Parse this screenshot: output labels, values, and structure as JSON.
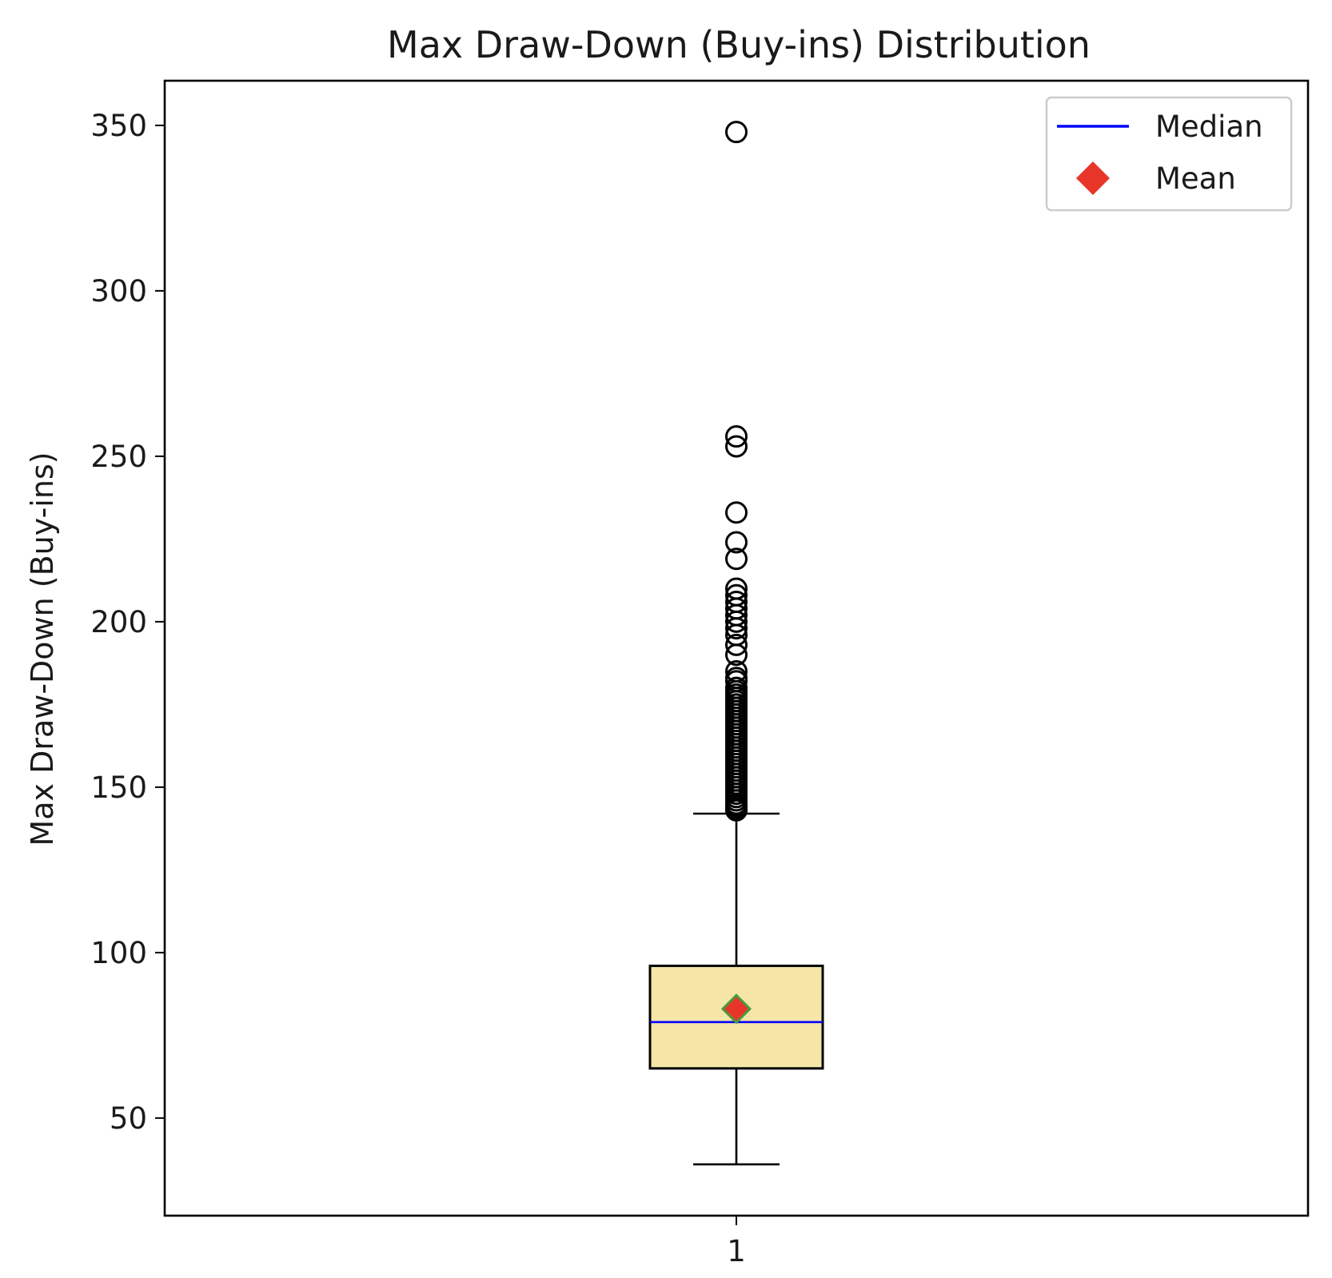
{
  "chart_data": {
    "type": "box",
    "title": "Max Draw-Down (Buy-ins) Distribution",
    "xlabel": "",
    "ylabel": "Max Draw-Down (Buy-ins)",
    "categories": [
      "1"
    ],
    "ylim": [
      20.5,
      363.5
    ],
    "yticks": [
      50,
      100,
      150,
      200,
      250,
      300,
      350
    ],
    "grid": false,
    "legend": {
      "position": "top-right",
      "entries": [
        {
          "label": "Median",
          "marker": "line",
          "color": "#0000ff"
        },
        {
          "label": "Mean",
          "marker": "diamond",
          "color": "#e8352a"
        }
      ]
    },
    "boxes": [
      {
        "category": "1",
        "whisker_low": 36,
        "q1": 65,
        "median": 79,
        "mean": 83,
        "q3": 96,
        "whisker_high": 142,
        "outliers": [
          143,
          143.5,
          144,
          144.5,
          145,
          146,
          147,
          148,
          149,
          150,
          151,
          152,
          153,
          154,
          155,
          156,
          157,
          158,
          159,
          160,
          161,
          162,
          163,
          164,
          165,
          166,
          167,
          168,
          169,
          170,
          171,
          172,
          173,
          174,
          175,
          176,
          177,
          178,
          179,
          180,
          182,
          183,
          185,
          190,
          193,
          196,
          198,
          200,
          202,
          204,
          206,
          208,
          210,
          219,
          224,
          233,
          253,
          256,
          348
        ]
      }
    ],
    "colors": {
      "box_fill": "#f5e6a8",
      "median_line": "#0000ff",
      "mean_marker": "#e8352a",
      "mean_edge": "#4a9a3a",
      "outline": "#000000"
    }
  }
}
